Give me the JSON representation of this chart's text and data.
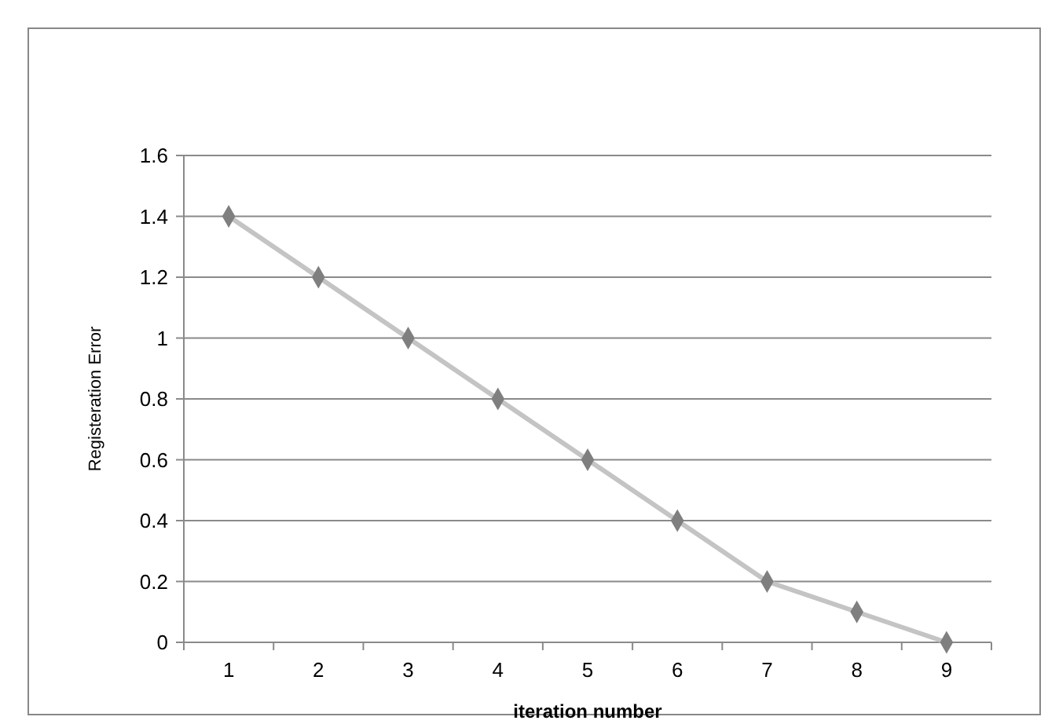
{
  "chart_data": {
    "type": "line",
    "xlabel": "iteration number",
    "ylabel": "Registeration Error",
    "categories": [
      "1",
      "2",
      "3",
      "4",
      "5",
      "6",
      "7",
      "8",
      "9"
    ],
    "series": [
      {
        "color": "#c4c4c4",
        "values": [
          1.4,
          1.2,
          1.0,
          0.8,
          0.6,
          0.4,
          0.2,
          0.1,
          0
        ]
      }
    ],
    "ylim": [
      0,
      1.6
    ],
    "yticks": [
      0,
      0.2,
      0.4,
      0.6,
      0.8,
      1,
      1.2,
      1.4,
      1.6
    ],
    "grid": "y",
    "marker": "diamond"
  }
}
